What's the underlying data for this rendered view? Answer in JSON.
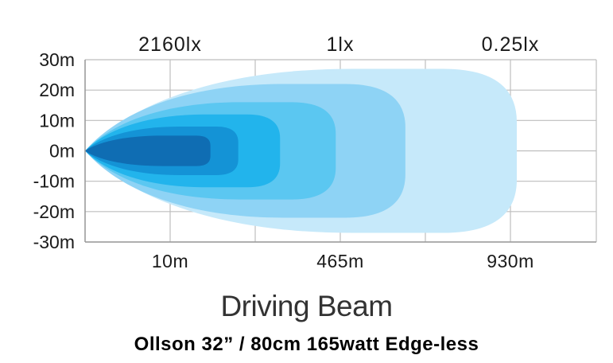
{
  "chart_data": {
    "type": "area",
    "title": "Driving Beam",
    "subtitle": "Ollson 32” / 80cm 165watt Edge-less",
    "y_ticks": [
      "30m",
      "20m",
      "10m",
      "0m",
      "-10m",
      "-20m",
      "-30m"
    ],
    "ylim": [
      -30,
      30
    ],
    "x_ticks_bottom": [
      "10m",
      "465m",
      "930m"
    ],
    "lux_labels_top": [
      "2160lx",
      "1lx",
      "0.25lx"
    ],
    "grid": true,
    "series": [
      {
        "color": "#c6e9fa",
        "reach": 930,
        "half_width": 27
      },
      {
        "color": "#8ed3f5",
        "reach": 690,
        "half_width": 22
      },
      {
        "color": "#5bc7f1",
        "reach": 540,
        "half_width": 16
      },
      {
        "color": "#22b4ec",
        "reach": 420,
        "half_width": 12
      },
      {
        "color": "#1493d6",
        "reach": 330,
        "half_width": 8
      },
      {
        "color": "#0f6db3",
        "reach": 270,
        "half_width": 5
      }
    ]
  }
}
